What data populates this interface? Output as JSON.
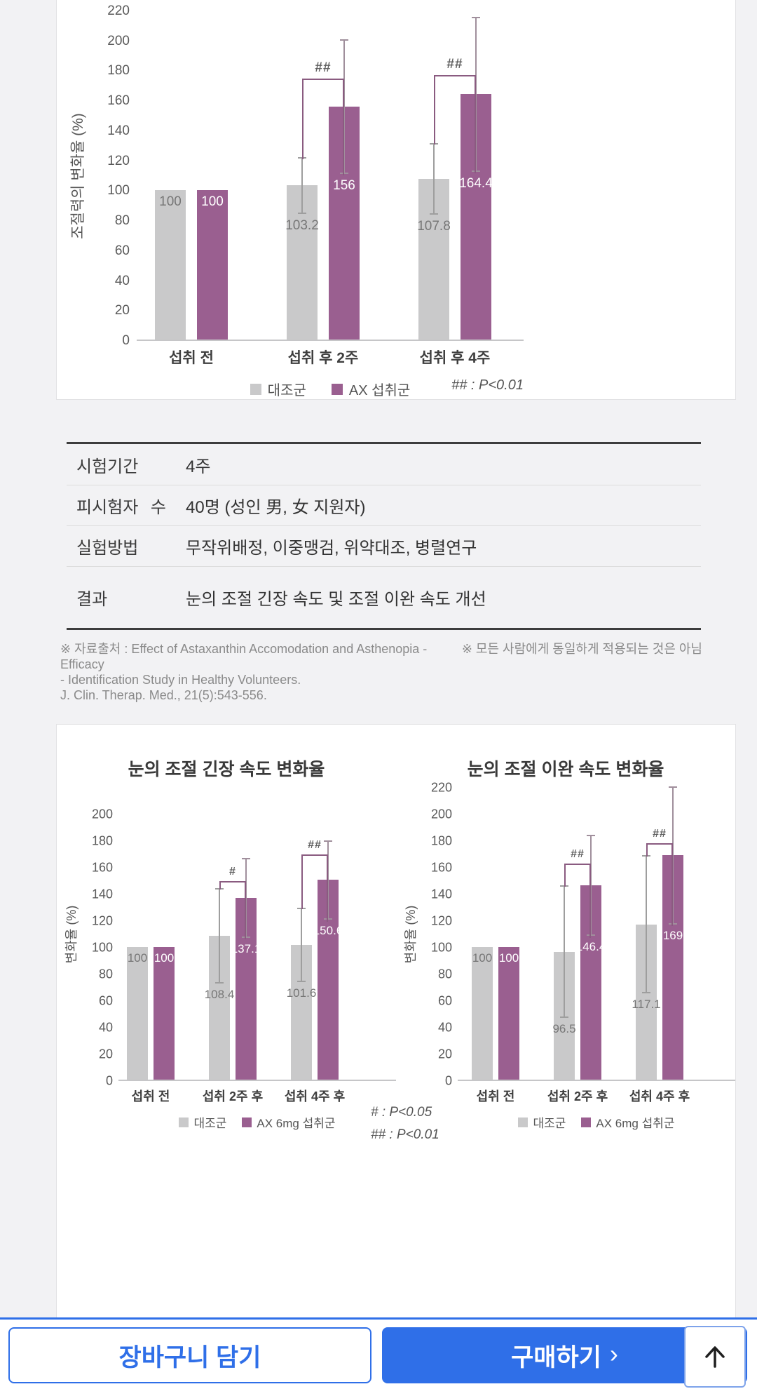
{
  "colors": {
    "accent_blue": "#2f6fe8",
    "bar_gray": "#c9c9ca",
    "bar_purple": "#9a5f90",
    "bracket_purple": "#8a5b80"
  },
  "chart_data": [
    {
      "type": "bar",
      "title": "",
      "ylabel": "조절력의 변화율 (%)",
      "xlabel": "",
      "ylim": [
        0,
        220
      ],
      "ytick": 20,
      "grid": false,
      "legend_position": "bottom",
      "categories": [
        "섭취 전",
        "섭취 후 2주",
        "섭취 후 4주"
      ],
      "series": [
        {
          "name": "대조군",
          "values": [
            100,
            103.2,
            107.8
          ],
          "errors": [
            0,
            19,
            24
          ],
          "color": "#c9c9ca",
          "error_color": "#9e9e9e"
        },
        {
          "name": "AX 섭취군",
          "values": [
            100,
            156,
            164.4
          ],
          "errors": [
            0,
            45,
            52
          ],
          "color": "#9a5f90",
          "error_color": "#a08f9c"
        }
      ],
      "significance": [
        {
          "group": 1,
          "label": "##",
          "top": 175
        },
        {
          "group": 2,
          "label": "##",
          "top": 177
        }
      ],
      "pnote": "## : P<0.01"
    },
    {
      "type": "bar",
      "title": "눈의 조절 긴장 속도 변화율",
      "ylabel": "변화율 (%)",
      "xlabel": "",
      "ylim": [
        0,
        200
      ],
      "ytick": 20,
      "grid": false,
      "legend_position": "bottom",
      "categories": [
        "섭취 전",
        "섭취 2주 후",
        "섭취 4주 후"
      ],
      "series": [
        {
          "name": "대조군",
          "values": [
            100,
            108.4,
            101.6
          ],
          "errors": [
            0,
            36,
            28
          ],
          "color": "#c9c9ca",
          "error_color": "#9e9e9e"
        },
        {
          "name": "AX 6mg 섭취군",
          "values": [
            100,
            137.1,
            150.6
          ],
          "errors": [
            0,
            30,
            30
          ],
          "color": "#9a5f90",
          "error_color": "#a08f9c"
        }
      ],
      "significance": [
        {
          "group": 1,
          "label": "#",
          "top": 150
        },
        {
          "group": 2,
          "label": "##",
          "top": 170
        }
      ]
    },
    {
      "type": "bar",
      "title": "눈의 조절 이완 속도 변화율",
      "ylabel": "변화율 (%)",
      "xlabel": "",
      "ylim": [
        0,
        220
      ],
      "ytick": 20,
      "grid": false,
      "legend_position": "bottom",
      "categories": [
        "섭취 전",
        "섭취 2주 후",
        "섭취 4주 후"
      ],
      "series": [
        {
          "name": "대조군",
          "values": [
            100,
            96.5,
            117.1
          ],
          "errors": [
            0,
            50,
            52
          ],
          "color": "#c9c9ca",
          "error_color": "#9e9e9e"
        },
        {
          "name": "AX 6mg 섭취군",
          "values": [
            100,
            146.4,
            169
          ],
          "errors": [
            0,
            38,
            52
          ],
          "color": "#9a5f90",
          "error_color": "#a08f9c"
        }
      ],
      "significance": [
        {
          "group": 1,
          "label": "##",
          "top": 163
        },
        {
          "group": 2,
          "label": "##",
          "top": 178
        }
      ]
    }
  ],
  "study_table": {
    "rows": [
      {
        "label": "시험기간",
        "value": "4주"
      },
      {
        "label": "피시험자 수",
        "value": "40명 (성인 男, 女 지원자)"
      },
      {
        "label": "실험방법",
        "value": "무작위배정, 이중맹검, 위약대조, 병렬연구"
      },
      {
        "label": "결과",
        "value": "눈의 조절 긴장 속도 및 조절 이완 속도 개선"
      }
    ]
  },
  "footnotes": {
    "source_line1": "※ 자료출처 : Effect of Astaxanthin Accomodation and Asthenopia - Efficacy",
    "source_line2": "- Identification Study in Healthy Volunteers.",
    "source_line3": "J. Clin. Therap. Med., 21(5):543-556.",
    "disclaimer": "※ 모든 사람에게 동일하게 적용되는 것은 아님"
  },
  "pnotes_small": {
    "p05": "# : P<0.05",
    "p01": "## : P<0.01"
  },
  "bottom_bar": {
    "cart_label": "장바구니 담기",
    "buy_label": "구매하기",
    "buy_chevron": "›"
  }
}
